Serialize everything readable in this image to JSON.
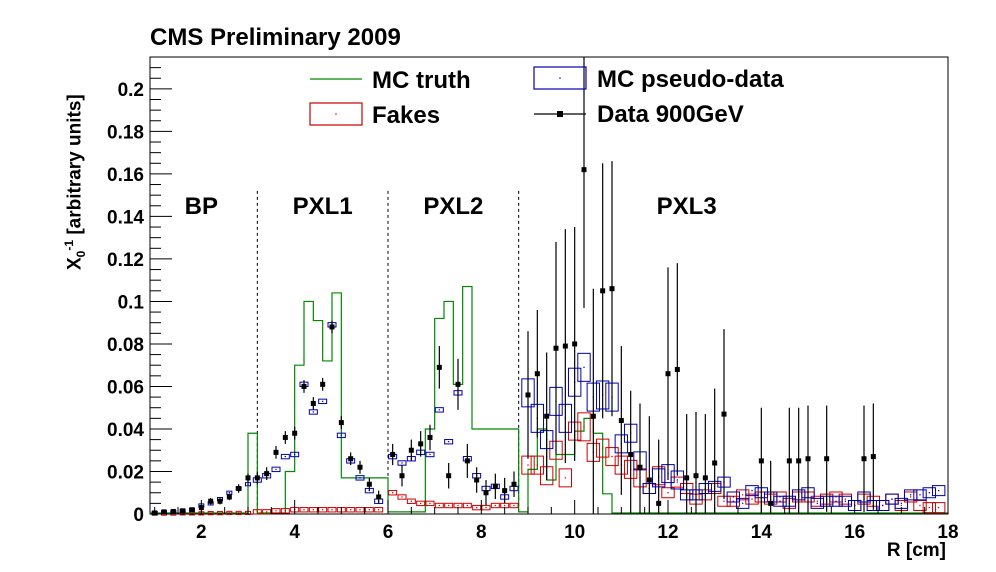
{
  "chart_data": {
    "type": "bar",
    "title": "CMS Preliminary 2009",
    "xlabel": "R [cm]",
    "ylabel": "X0-1 [arbitrary units]",
    "xlim": [
      0.9,
      18
    ],
    "ylim": [
      0,
      0.215
    ],
    "xticks": [
      "2",
      "4",
      "6",
      "8",
      "10",
      "12",
      "14",
      "16",
      "18"
    ],
    "yticks": [
      "0",
      "0.02",
      "0.04",
      "0.06",
      "0.08",
      "0.1",
      "0.12",
      "0.14",
      "0.16",
      "0.18",
      "0.2"
    ],
    "regions": [
      {
        "label": "BP",
        "x": 2.0
      },
      {
        "label": "PXL1",
        "x": 4.6
      },
      {
        "label": "PXL2",
        "x": 7.4
      },
      {
        "label": "PXL3",
        "x": 12.4
      }
    ],
    "region_boundaries": [
      3.2,
      6.0,
      8.8
    ],
    "legend": {
      "mc_truth": "MC truth",
      "fakes": "Fakes",
      "mc_pseudo": "MC pseudo-data",
      "data": "Data 900GeV",
      "colors": {
        "mc_truth": "#008800",
        "fakes": "#cc0000",
        "mc_pseudo": "#0000aa",
        "data": "#000000"
      }
    },
    "mc_truth": {
      "edges": [
        0.9,
        3.0,
        3.2,
        3.8,
        4.0,
        4.2,
        4.4,
        4.6,
        4.8,
        5.0,
        6.0,
        6.8,
        7.0,
        7.2,
        7.4,
        7.6,
        7.8,
        8.8,
        9.0,
        9.2,
        9.4,
        9.6,
        9.8,
        10.0,
        10.2,
        10.4,
        10.6,
        10.8,
        18.0
      ],
      "values": [
        0.0005,
        0.038,
        0.0005,
        0.02,
        0.07,
        0.1,
        0.091,
        0.072,
        0.104,
        0.017,
        0.001,
        0.04,
        0.092,
        0.1,
        0.061,
        0.107,
        0.04,
        0.001,
        0.021,
        0.04,
        0.016,
        0.028,
        0.028,
        0.039,
        0.045,
        0.038,
        0.0095,
        0.0005
      ]
    },
    "fakes": {
      "x": [
        1.0,
        1.2,
        1.4,
        1.6,
        1.8,
        2.0,
        2.2,
        2.4,
        2.6,
        2.8,
        3.0,
        3.2,
        3.4,
        3.6,
        3.8,
        4.0,
        4.2,
        4.4,
        4.6,
        4.8,
        5.0,
        5.2,
        5.4,
        5.6,
        5.8,
        6.1,
        6.3,
        6.5,
        6.7,
        6.9,
        7.1,
        7.3,
        7.5,
        7.7,
        7.9,
        8.1,
        8.3,
        8.5,
        8.7,
        9.0,
        9.2,
        9.4,
        9.6,
        9.8,
        10.0,
        10.2,
        10.4,
        10.6,
        10.8,
        11.0,
        11.2,
        11.4,
        11.6,
        11.8,
        12.0,
        12.2,
        12.4,
        12.6,
        12.8,
        13.0,
        13.2,
        13.4,
        13.6,
        13.8,
        14.0,
        14.2,
        14.4,
        14.6,
        14.8,
        15.0,
        15.2,
        15.4,
        15.6,
        15.8,
        16.0,
        16.2,
        16.4,
        16.6,
        16.8,
        17.0,
        17.2,
        17.4,
        17.6,
        17.8
      ],
      "y": [
        0.0002,
        0.0002,
        0.0002,
        0.0003,
        0.0003,
        0.0003,
        0.0004,
        0.0004,
        0.0005,
        0.0005,
        0.0005,
        0.001,
        0.001,
        0.0015,
        0.0015,
        0.002,
        0.002,
        0.002,
        0.002,
        0.002,
        0.002,
        0.002,
        0.002,
        0.002,
        0.002,
        0.01,
        0.008,
        0.006,
        0.005,
        0.005,
        0.004,
        0.004,
        0.004,
        0.004,
        0.003,
        0.003,
        0.004,
        0.004,
        0.004,
        0.023,
        0.023,
        0.018,
        0.03,
        0.017,
        0.039,
        0.041,
        0.029,
        0.031,
        0.027,
        0.023,
        0.021,
        0.017,
        0.012,
        0.018,
        0.01,
        0.015,
        0.012,
        0.007,
        0.009,
        0.012,
        0.006,
        0.006,
        0.009,
        0.007,
        0.008,
        0.007,
        0.008,
        0.005,
        0.008,
        0.008,
        0.006,
        0.007,
        0.008,
        0.007,
        0.004,
        0.007,
        0.006,
        0.004,
        0.007,
        0.004,
        0.008,
        0.004,
        0.003,
        0.003
      ]
    },
    "mc_pseudo": {
      "x": [
        1.0,
        1.2,
        1.4,
        1.6,
        1.8,
        2.0,
        2.2,
        2.4,
        2.6,
        2.8,
        3.0,
        3.2,
        3.4,
        3.6,
        3.8,
        4.0,
        4.2,
        4.4,
        4.6,
        4.8,
        5.0,
        5.2,
        5.4,
        5.6,
        5.8,
        6.1,
        6.3,
        6.5,
        6.7,
        6.9,
        7.1,
        7.3,
        7.5,
        7.7,
        7.9,
        8.1,
        8.3,
        8.5,
        8.7,
        9.0,
        9.2,
        9.4,
        9.6,
        9.8,
        10.0,
        10.2,
        10.4,
        10.6,
        10.8,
        11.0,
        11.2,
        11.4,
        11.6,
        11.8,
        12.0,
        12.2,
        12.4,
        12.6,
        12.8,
        13.0,
        13.2,
        13.4,
        13.6,
        13.8,
        14.0,
        14.2,
        14.4,
        14.6,
        14.8,
        15.0,
        15.2,
        15.4,
        15.6,
        15.8,
        16.0,
        16.2,
        16.4,
        16.6,
        16.8,
        17.0,
        17.2,
        17.4,
        17.6,
        17.8
      ],
      "y": [
        0.0005,
        0.0008,
        0.001,
        0.0015,
        0.002,
        0.004,
        0.005,
        0.007,
        0.01,
        0.012,
        0.014,
        0.016,
        0.018,
        0.021,
        0.027,
        0.028,
        0.061,
        0.048,
        0.053,
        0.089,
        0.037,
        0.025,
        0.017,
        0.011,
        0.006,
        0.027,
        0.024,
        0.026,
        0.029,
        0.028,
        0.049,
        0.034,
        0.057,
        0.026,
        0.018,
        0.012,
        0.013,
        0.008,
        0.012,
        0.057,
        0.045,
        0.035,
        0.053,
        0.045,
        0.062,
        0.069,
        0.055,
        0.056,
        0.055,
        0.033,
        0.038,
        0.025,
        0.012,
        0.017,
        0.019,
        0.016,
        0.009,
        0.009,
        0.012,
        0.013,
        0.015,
        0.008,
        0.005,
        0.011,
        0.01,
        0.008,
        0.006,
        0.006,
        0.009,
        0.01,
        0.005,
        0.006,
        0.006,
        0.006,
        0.004,
        0.008,
        0.004,
        0.004,
        0.007,
        0.005,
        0.009,
        0.009,
        0.01,
        0.011
      ]
    },
    "data": {
      "x": [
        1.0,
        1.2,
        1.4,
        1.6,
        1.8,
        2.0,
        2.2,
        2.4,
        2.6,
        2.8,
        3.0,
        3.2,
        3.4,
        3.6,
        3.8,
        4.0,
        4.2,
        4.4,
        4.6,
        4.8,
        5.0,
        5.2,
        5.4,
        5.6,
        5.8,
        6.1,
        6.3,
        6.5,
        6.7,
        6.9,
        7.1,
        7.3,
        7.5,
        7.7,
        7.9,
        8.1,
        8.3,
        8.5,
        8.7,
        9.0,
        9.2,
        9.4,
        9.6,
        9.8,
        10.0,
        10.2,
        10.4,
        10.6,
        10.8,
        11.0,
        11.2,
        11.4,
        11.6,
        11.8,
        12.0,
        12.2,
        12.4,
        12.6,
        12.8,
        13.0,
        13.2,
        14.0,
        14.2,
        14.6,
        14.8,
        15.0,
        15.4,
        16.2,
        16.4
      ],
      "y": [
        0.0005,
        0.001,
        0.0012,
        0.0015,
        0.002,
        0.003,
        0.006,
        0.006,
        0.008,
        0.012,
        0.017,
        0.017,
        0.019,
        0.029,
        0.036,
        0.038,
        0.06,
        0.052,
        0.061,
        0.088,
        0.043,
        0.026,
        0.022,
        0.014,
        0.008,
        0.028,
        0.018,
        0.03,
        0.033,
        0.036,
        0.069,
        0.018,
        0.061,
        0.025,
        0.016,
        0.01,
        0.013,
        0.011,
        0.014,
        0.056,
        0.066,
        0.046,
        0.078,
        0.079,
        0.08,
        0.162,
        0.046,
        0.105,
        0.106,
        0.044,
        0.028,
        0.022,
        0.016,
        0.005,
        0.066,
        0.068,
        0.017,
        0.018,
        0.017,
        0.024,
        0.047,
        0.025,
        0.005,
        0.025,
        0.025,
        0.026,
        0.026,
        0.026,
        0.027
      ],
      "err": [
        0.0005,
        0.001,
        0.001,
        0.001,
        0.001,
        0.001,
        0.0015,
        0.0015,
        0.0015,
        0.002,
        0.002,
        0.003,
        0.003,
        0.003,
        0.003,
        0.003,
        0.003,
        0.003,
        0.003,
        0.003,
        0.003,
        0.003,
        0.003,
        0.003,
        0.003,
        0.005,
        0.005,
        0.005,
        0.006,
        0.006,
        0.01,
        0.006,
        0.012,
        0.008,
        0.006,
        0.006,
        0.006,
        0.006,
        0.006,
        0.03,
        0.03,
        0.03,
        0.05,
        0.055,
        0.055,
        0.065,
        0.06,
        0.06,
        0.06,
        0.035,
        0.03,
        0.03,
        0.03,
        0.03,
        0.05,
        0.05,
        0.03,
        0.03,
        0.03,
        0.035,
        0.04,
        0.025,
        0.02,
        0.025,
        0.025,
        0.025,
        0.025,
        0.025,
        0.025
      ]
    }
  }
}
